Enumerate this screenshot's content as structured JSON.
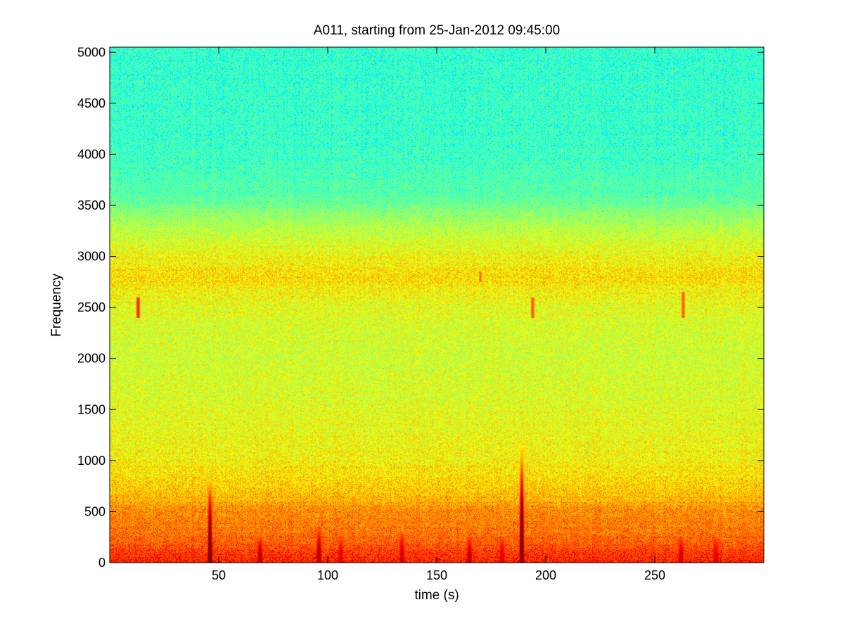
{
  "chart_data": {
    "type": "heatmap",
    "title": "A011, starting from 25-Jan-2012 09:45:00",
    "xlabel": "time (s)",
    "ylabel": "Frequency",
    "xlim": [
      0,
      300
    ],
    "ylim": [
      0,
      5050
    ],
    "x_ticks": [
      50,
      100,
      150,
      200,
      250
    ],
    "y_ticks": [
      0,
      500,
      1000,
      1500,
      2000,
      2500,
      3000,
      3500,
      4000,
      4500,
      5000
    ],
    "colormap": "jet",
    "grid": false,
    "legend": "none",
    "color_scale": [
      0.0,
      1.0
    ],
    "intensity_profile": [
      {
        "frequency": 0,
        "level": 0.86
      },
      {
        "frequency": 150,
        "level": 0.8
      },
      {
        "frequency": 300,
        "level": 0.76
      },
      {
        "frequency": 500,
        "level": 0.74
      },
      {
        "frequency": 700,
        "level": 0.68
      },
      {
        "frequency": 1000,
        "level": 0.63
      },
      {
        "frequency": 1500,
        "level": 0.6
      },
      {
        "frequency": 2000,
        "level": 0.58
      },
      {
        "frequency": 2500,
        "level": 0.6
      },
      {
        "frequency": 2800,
        "level": 0.66
      },
      {
        "frequency": 3000,
        "level": 0.62
      },
      {
        "frequency": 3300,
        "level": 0.55
      },
      {
        "frequency": 3600,
        "level": 0.46
      },
      {
        "frequency": 4000,
        "level": 0.43
      },
      {
        "frequency": 5050,
        "level": 0.42
      }
    ],
    "transient_events": [
      {
        "time": 46,
        "max_frequency": 800,
        "level": 1.0
      },
      {
        "time": 69,
        "max_frequency": 250,
        "level": 0.95
      },
      {
        "time": 96,
        "max_frequency": 350,
        "level": 0.95
      },
      {
        "time": 106,
        "max_frequency": 250,
        "level": 0.9
      },
      {
        "time": 134,
        "max_frequency": 300,
        "level": 0.92
      },
      {
        "time": 165,
        "max_frequency": 250,
        "level": 0.95
      },
      {
        "time": 180,
        "max_frequency": 250,
        "level": 0.9
      },
      {
        "time": 189,
        "max_frequency": 1150,
        "level": 1.0
      },
      {
        "time": 262,
        "max_frequency": 250,
        "level": 0.92
      },
      {
        "time": 278,
        "max_frequency": 250,
        "level": 0.9
      }
    ],
    "narrowband_events": [
      {
        "time": 13,
        "frequency_range": [
          2400,
          2600
        ],
        "level": 0.85
      },
      {
        "time": 194,
        "frequency_range": [
          2400,
          2600
        ],
        "level": 0.8
      },
      {
        "time": 263,
        "frequency_range": [
          2400,
          2650
        ],
        "level": 0.8
      },
      {
        "time": 170,
        "frequency_range": [
          2750,
          2850
        ],
        "level": 0.78
      }
    ]
  }
}
